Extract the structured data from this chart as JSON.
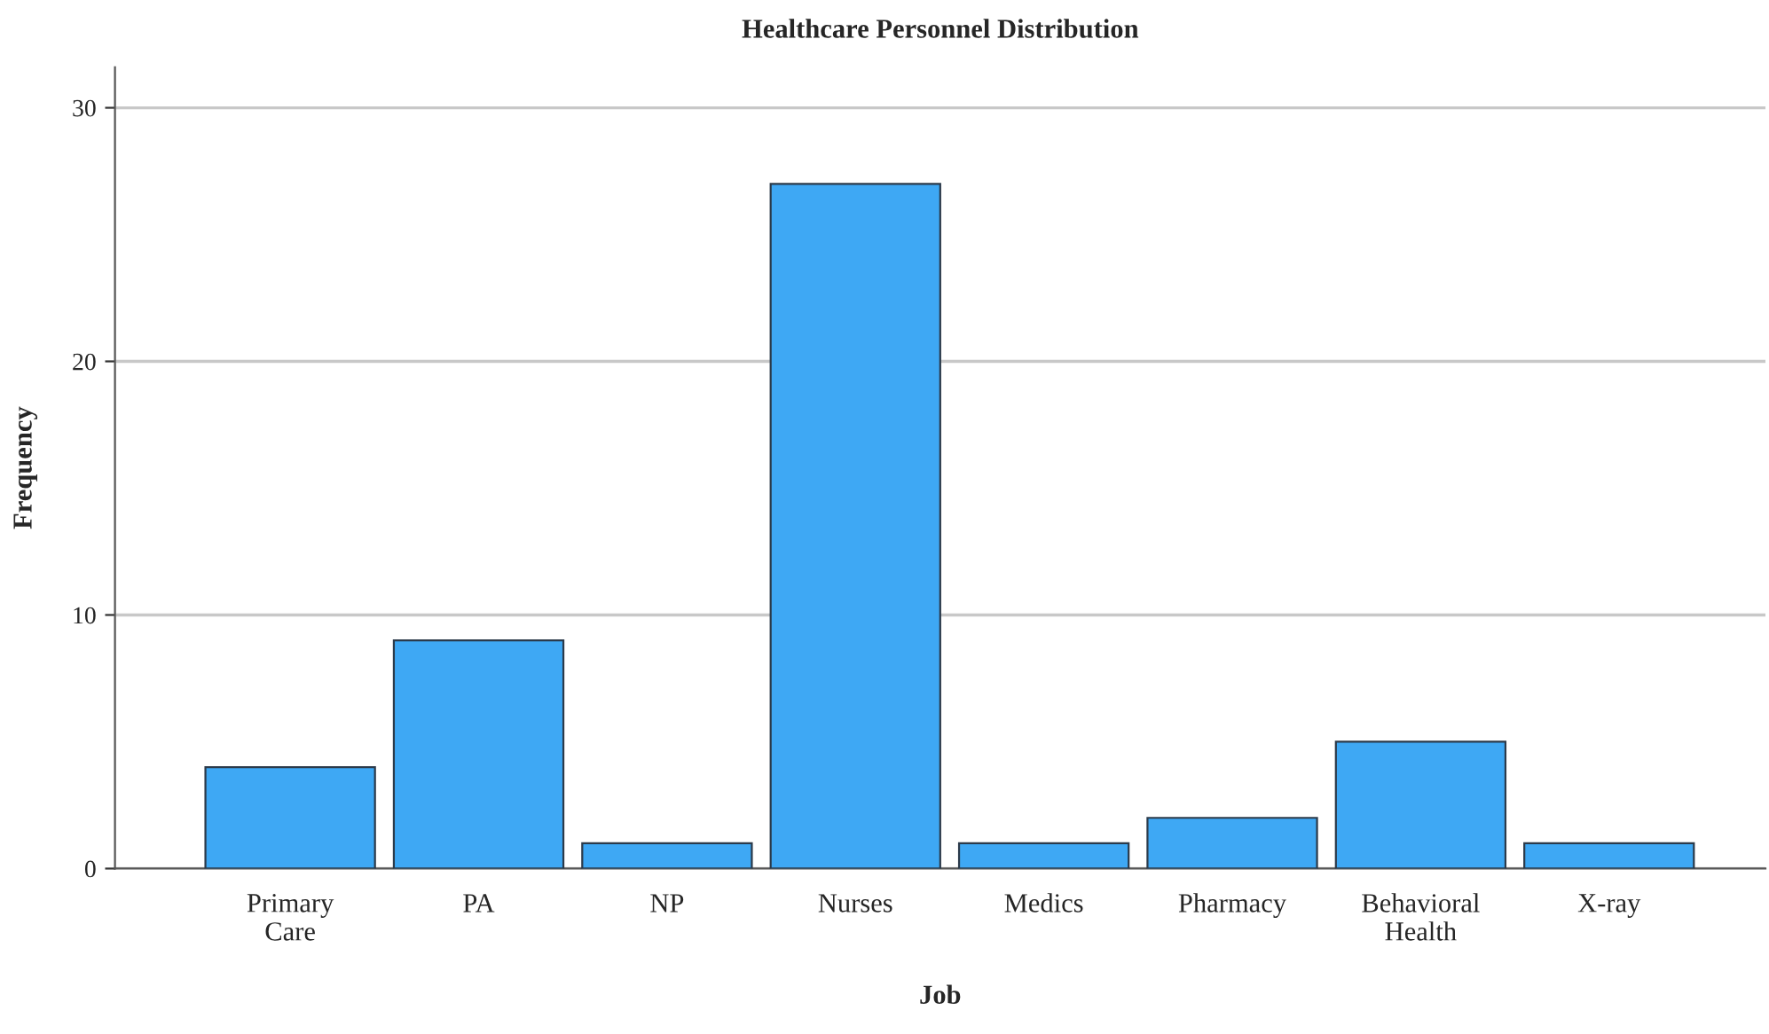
{
  "chart_data": {
    "type": "bar",
    "title": "Healthcare Personnel Distribution",
    "xlabel": "Job",
    "ylabel": "Frequency",
    "categories": [
      "Primary Care",
      "PA",
      "NP",
      "Nurses",
      "Medics",
      "Pharmacy",
      "Behavioral Health",
      "X-ray"
    ],
    "values": [
      4,
      9,
      1,
      27,
      1,
      2,
      5,
      1
    ],
    "color": "#3ea8f4",
    "ylim": [
      0,
      31.6
    ],
    "yticks": [
      0,
      10,
      20,
      30
    ],
    "grid": "y",
    "legend": false
  }
}
